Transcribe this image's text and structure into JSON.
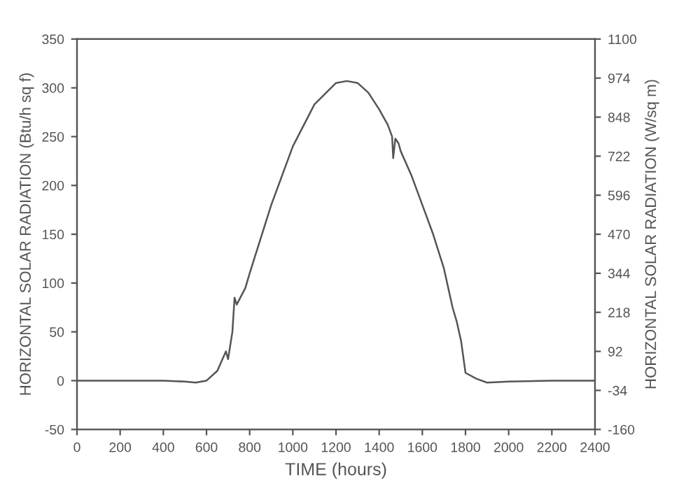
{
  "chart_data": {
    "type": "line",
    "xlabel": "TIME (hours)",
    "ylabel": "HORIZONTAL SOLAR RADIATION (Btu/h sq f)",
    "y2label": "HORIZONTAL SOLAR RADIATION (W/sq m)",
    "series": [
      {
        "color": "#555555",
        "x": [
          0,
          200,
          400,
          500,
          550,
          600,
          650,
          690,
          700,
          720,
          730,
          740,
          780,
          800,
          900,
          1000,
          1100,
          1200,
          1250,
          1300,
          1350,
          1400,
          1440,
          1460,
          1465,
          1475,
          1490,
          1500,
          1550,
          1600,
          1650,
          1700,
          1740,
          1760,
          1780,
          1800,
          1850,
          1900,
          2000,
          2200,
          2400
        ],
        "values": [
          0,
          0,
          0,
          -1,
          -2,
          0,
          10,
          30,
          22,
          50,
          85,
          78,
          95,
          110,
          180,
          240,
          283,
          305,
          307,
          305,
          295,
          278,
          262,
          250,
          228,
          248,
          243,
          235,
          210,
          180,
          150,
          115,
          75,
          60,
          40,
          8,
          2,
          -2,
          -1,
          0,
          0
        ]
      }
    ],
    "xlim": [
      0,
      2400
    ],
    "xticks": [
      0,
      200,
      400,
      600,
      800,
      1000,
      1200,
      1400,
      1600,
      1800,
      2000,
      2200,
      2400
    ],
    "ylim": [
      -50,
      350
    ],
    "yticks": [
      -50,
      0,
      50,
      100,
      150,
      200,
      250,
      300,
      350
    ],
    "y2lim": [
      -160,
      1100
    ],
    "y2ticks": [
      -160,
      -34,
      92,
      218,
      344,
      470,
      596,
      722,
      848,
      974,
      1100
    ],
    "grid": false,
    "legend": false
  }
}
